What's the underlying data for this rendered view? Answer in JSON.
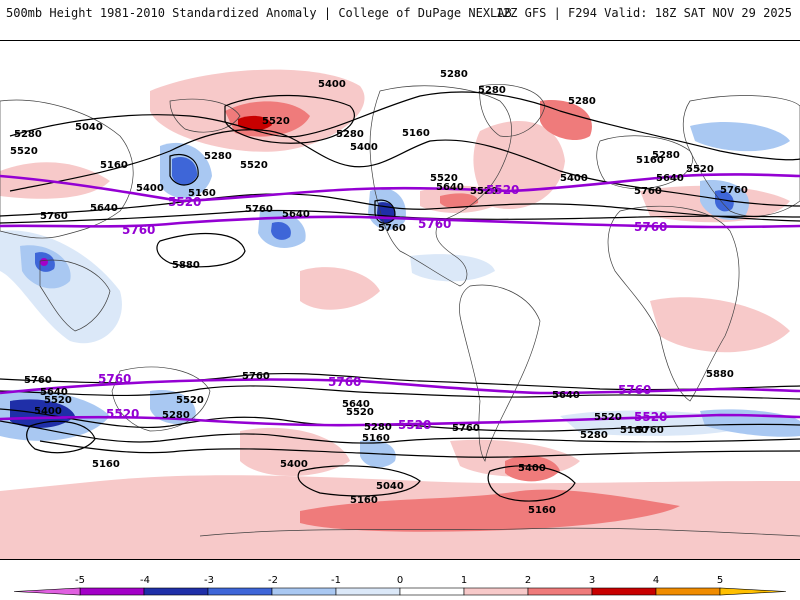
{
  "header": {
    "title_left": "500mb Height 1981-2010 Standardized Anomaly | College of DuPage NEXLAB",
    "title_right": "12Z GFS | F294 Valid: 18Z SAT NOV 29 2025"
  },
  "colors": {
    "contour_black": "#000000",
    "contour_purple": "#9400d3",
    "land_outline": "#404040"
  },
  "contour_labels": {
    "black": [
      {
        "text": "5280",
        "id": "nh-5280-a"
      },
      {
        "text": "5280",
        "id": "nh-5280-b"
      },
      {
        "text": "5280",
        "id": "nh-5280-c"
      },
      {
        "text": "5400",
        "id": "nh-5400-a"
      },
      {
        "text": "5520",
        "id": "nh-5520-a"
      },
      {
        "text": "5040",
        "id": "nh-5040-a"
      },
      {
        "text": "5280",
        "id": "nh-5280-d"
      },
      {
        "text": "5520",
        "id": "nh-5520-b"
      },
      {
        "text": "5160",
        "id": "nh-5160-a"
      },
      {
        "text": "5280",
        "id": "nh-5280-e"
      },
      {
        "text": "5520",
        "id": "nh-5520-c"
      },
      {
        "text": "5400",
        "id": "nh-5400-b"
      },
      {
        "text": "5160",
        "id": "nh-5160-b"
      },
      {
        "text": "5280",
        "id": "nh-5280-f"
      },
      {
        "text": "5400",
        "id": "nh-5400-c"
      },
      {
        "text": "5160",
        "id": "nh-5160-c"
      },
      {
        "text": "5640",
        "id": "nh-5640-a"
      },
      {
        "text": "5760",
        "id": "nh-5760-a"
      },
      {
        "text": "5640",
        "id": "nh-5640-b"
      },
      {
        "text": "5760",
        "id": "nh-5760-b"
      },
      {
        "text": "5880",
        "id": "nh-5880-a"
      },
      {
        "text": "5760",
        "id": "nh-5760-c"
      },
      {
        "text": "5520",
        "id": "nh-5520-d"
      },
      {
        "text": "5640",
        "id": "nh-5640-c"
      },
      {
        "text": "5400",
        "id": "nh-5400-d"
      },
      {
        "text": "5760",
        "id": "nh-5760-d"
      },
      {
        "text": "5280",
        "id": "nh-5280-g"
      },
      {
        "text": "5520",
        "id": "nh-5520-e"
      },
      {
        "text": "5640",
        "id": "nh-5640-d"
      },
      {
        "text": "5760",
        "id": "nh-5760-e"
      },
      {
        "text": "5160",
        "id": "nh-5160-d"
      },
      {
        "text": "5520",
        "id": "nh-5520-f"
      },
      {
        "text": "5880",
        "id": "af-5880-a"
      },
      {
        "text": "5760",
        "id": "sh-5760-a"
      },
      {
        "text": "5640",
        "id": "sh-5640-a"
      },
      {
        "text": "5520",
        "id": "sh-5520-a"
      },
      {
        "text": "5400",
        "id": "sh-5400-a"
      },
      {
        "text": "5760",
        "id": "sh-5760-b"
      },
      {
        "text": "5520",
        "id": "sh-5520-b"
      },
      {
        "text": "5280",
        "id": "sh-5280-a"
      },
      {
        "text": "5640",
        "id": "sh-5640-b"
      },
      {
        "text": "5520",
        "id": "sh-5520-c"
      },
      {
        "text": "5280",
        "id": "sh-5280-b"
      },
      {
        "text": "5160",
        "id": "sh-5160-a"
      },
      {
        "text": "5160",
        "id": "sh-5160-b"
      },
      {
        "text": "5400",
        "id": "sh-5400-b"
      },
      {
        "text": "5040",
        "id": "sh-5040-a"
      },
      {
        "text": "5160",
        "id": "sh-5160-c"
      },
      {
        "text": "5760",
        "id": "sh-5760-c"
      },
      {
        "text": "5640",
        "id": "sh-5640-c"
      },
      {
        "text": "5760",
        "id": "sh-5760-d"
      },
      {
        "text": "5520",
        "id": "sh-5520-d"
      },
      {
        "text": "5280",
        "id": "sh-5280-c"
      },
      {
        "text": "5160",
        "id": "sh-5160-d"
      },
      {
        "text": "5400",
        "id": "sh-5400-c"
      },
      {
        "text": "5160",
        "id": "sh-5160-e"
      }
    ],
    "purple": [
      {
        "text": "5520",
        "id": "p-nh-5520-a"
      },
      {
        "text": "5760",
        "id": "p-nh-5760-a"
      },
      {
        "text": "5760",
        "id": "p-nh-5760-b"
      },
      {
        "text": "5520",
        "id": "p-nh-5520-b"
      },
      {
        "text": "5760",
        "id": "p-nh-5760-c"
      },
      {
        "text": "5760",
        "id": "p-sh-5760-a"
      },
      {
        "text": "5760",
        "id": "p-sh-5760-b"
      },
      {
        "text": "5760",
        "id": "p-sh-5760-c"
      },
      {
        "text": "5520",
        "id": "p-sh-5520-a"
      },
      {
        "text": "5520",
        "id": "p-sh-5520-b"
      },
      {
        "text": "5520",
        "id": "p-sh-5520-c"
      }
    ]
  },
  "colorbar": {
    "ticks": [
      "-5",
      "-4",
      "-3",
      "-2",
      "-1",
      "0",
      "1",
      "2",
      "3",
      "4",
      "5"
    ],
    "bins": [
      {
        "range": "-5 to -4",
        "color": "#a300c8"
      },
      {
        "range": "-4 to -3",
        "color": "#1f2fa8"
      },
      {
        "range": "-3 to -2",
        "color": "#3e66d8"
      },
      {
        "range": "-2 to -1",
        "color": "#a9c8f2"
      },
      {
        "range": "-1 to 0",
        "color": "#dbe8f8"
      },
      {
        "range": "0 to 1",
        "color": "#ffffff"
      },
      {
        "range": "1 to 2",
        "color": "#f7c9c9"
      },
      {
        "range": "2 to 3",
        "color": "#ef7b7b"
      },
      {
        "range": "3 to 4",
        "color": "#c80000"
      },
      {
        "range": "4 to 5",
        "color": "#f08c00"
      }
    ],
    "below_color": "#e060e0",
    "above_color": "#ffc000"
  }
}
